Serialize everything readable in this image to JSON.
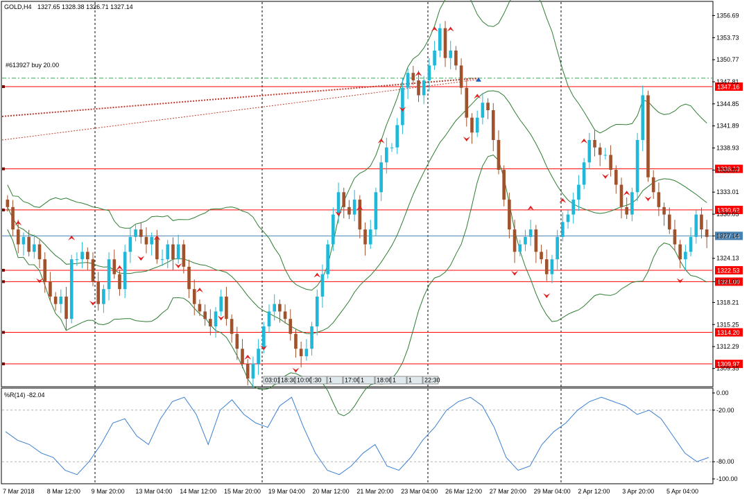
{
  "header": {
    "symbol": "GOLD,H4",
    "ohlc": "1327.65 1328.38 1326.71 1327.14"
  },
  "order_label": "#613927 buy 20.00",
  "indicator": {
    "label": "%R(14) -82.04",
    "ticks": [
      "0.00",
      "-20.00",
      "-80.00",
      "-100.00"
    ],
    "levels": [
      -20,
      -80
    ]
  },
  "session_boxes": [
    "03:01",
    "18:30",
    "10:00",
    ":30",
    "1",
    "17:00",
    "1",
    "18:00",
    "1",
    "1",
    "22:30"
  ],
  "chart_data": {
    "type": "candlestick",
    "symbol": "GOLD",
    "timeframe": "H4",
    "ylim": [
      1307.0,
      1358.5
    ],
    "y_ticks": [
      1309.35,
      1312.29,
      1315.25,
      1318.21,
      1321.0,
      1324.13,
      1327.14,
      1330.05,
      1333.01,
      1335.97,
      1338.93,
      1341.89,
      1344.85,
      1347.81,
      1350.77,
      1353.73,
      1356.69
    ],
    "x_labels": [
      "7 Mar 2018",
      "8 Mar 12:00",
      "9 Mar 20:00",
      "13 Mar 04:00",
      "14 Mar 12:00",
      "15 Mar 20:00",
      "19 Mar 04:00",
      "20 Mar 12:00",
      "21 Mar 20:00",
      "23 Mar 04:00",
      "26 Mar 12:00",
      "27 Mar 20:00",
      "29 Mar 04:00",
      "2 Apr 12:00",
      "3 Apr 20:00",
      "5 Apr 04:00"
    ],
    "levels": [
      {
        "price": 1347.16,
        "label": "1347.16",
        "color": "#ff0000"
      },
      {
        "price": 1336.13,
        "label": "1336.13",
        "color": "#ff0000"
      },
      {
        "price": 1330.62,
        "label": "1330.62",
        "color": "#ff0000"
      },
      {
        "price": 1322.53,
        "label": "1322.53",
        "color": "#ff0000"
      },
      {
        "price": 1321.0,
        "label": "1321.00",
        "color": "#ff0000"
      },
      {
        "price": 1314.2,
        "label": "1314.20",
        "color": "#ff0000"
      },
      {
        "price": 1309.97,
        "label": "1309.97",
        "color": "#ff0000"
      }
    ],
    "current_price": {
      "price": 1327.14,
      "label": "1327.14",
      "color": "#4682b4"
    },
    "order_price": 1348.3,
    "closes": [
      1331,
      1328,
      1326,
      1327,
      1325,
      1326,
      1324,
      1321,
      1319,
      1318,
      1319,
      1316,
      1324,
      1324,
      1325,
      1324,
      1321,
      1318,
      1320,
      1324,
      1322,
      1320,
      1325,
      1327,
      1328,
      1327,
      1326,
      1327,
      1324,
      1324,
      1326,
      1324,
      1326,
      1323,
      1320,
      1318,
      1317,
      1316,
      1315,
      1317,
      1319,
      1316,
      1314,
      1312,
      1310,
      1308,
      1310,
      1312,
      1315,
      1317,
      1318,
      1317,
      1316,
      1314,
      1312,
      1311,
      1312,
      1315,
      1319,
      1322,
      1326,
      1330,
      1333,
      1331,
      1330,
      1332,
      1328,
      1326,
      1328,
      1333,
      1337,
      1339,
      1339,
      1342,
      1347,
      1349,
      1348,
      1346,
      1348,
      1350,
      1352,
      1355,
      1351,
      1352,
      1350,
      1347,
      1343,
      1341,
      1343,
      1345,
      1344,
      1340,
      1336,
      1332,
      1328,
      1325,
      1326,
      1327,
      1328,
      1325,
      1324,
      1322,
      1324,
      1327,
      1329,
      1330,
      1332,
      1334,
      1337,
      1340,
      1339,
      1338,
      1338,
      1336,
      1334,
      1331,
      1330,
      1333,
      1340,
      1346,
      1335,
      1333,
      1331,
      1330,
      1328,
      1326,
      1324,
      1325,
      1327,
      1330,
      1328,
      1327
    ],
    "markers": [
      {
        "i": 2,
        "type": "up"
      },
      {
        "i": 6,
        "type": "down"
      },
      {
        "i": 12,
        "type": "up"
      },
      {
        "i": 16,
        "type": "down"
      },
      {
        "i": 21,
        "type": "up"
      },
      {
        "i": 25,
        "type": "down"
      },
      {
        "i": 28,
        "type": "up"
      },
      {
        "i": 32,
        "type": "down"
      },
      {
        "i": 36,
        "type": "up"
      },
      {
        "i": 40,
        "type": "down"
      },
      {
        "i": 45,
        "type": "up"
      },
      {
        "i": 48,
        "type": "down"
      },
      {
        "i": 54,
        "type": "down"
      },
      {
        "i": 58,
        "type": "up"
      },
      {
        "i": 62,
        "type": "down"
      },
      {
        "i": 66,
        "type": "up"
      },
      {
        "i": 70,
        "type": "up"
      },
      {
        "i": 74,
        "type": "down"
      },
      {
        "i": 77,
        "type": "up"
      },
      {
        "i": 80,
        "type": "up"
      },
      {
        "i": 83,
        "type": "up"
      },
      {
        "i": 86,
        "type": "down"
      },
      {
        "i": 88,
        "type": "up"
      },
      {
        "i": 95,
        "type": "down"
      },
      {
        "i": 98,
        "type": "up"
      },
      {
        "i": 101,
        "type": "down"
      },
      {
        "i": 104,
        "type": "up"
      },
      {
        "i": 108,
        "type": "up"
      },
      {
        "i": 112,
        "type": "down"
      },
      {
        "i": 116,
        "type": "up"
      },
      {
        "i": 120,
        "type": "down"
      },
      {
        "i": 126,
        "type": "down"
      }
    ],
    "williams_r": [
      -45,
      -55,
      -60,
      -70,
      -75,
      -90,
      -95,
      -80,
      -60,
      -35,
      -30,
      -50,
      -60,
      -30,
      -10,
      -5,
      -25,
      -60,
      -20,
      -8,
      -25,
      -35,
      -40,
      -15,
      -5,
      -40,
      -70,
      -90,
      -95,
      -85,
      -70,
      -60,
      -85,
      -90,
      -75,
      -55,
      -40,
      -20,
      -10,
      -5,
      -15,
      -40,
      -75,
      -90,
      -85,
      -60,
      -45,
      -35,
      -20,
      -10,
      -5,
      -10,
      -15,
      -25,
      -20,
      -30,
      -50,
      -70,
      -80,
      -75
    ],
    "grid": true
  }
}
